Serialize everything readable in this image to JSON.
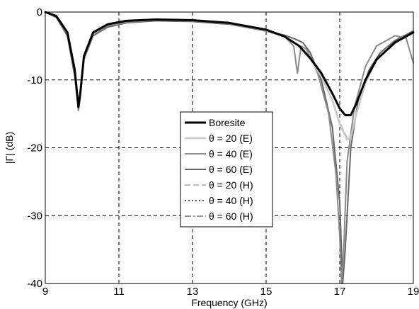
{
  "chart_data": {
    "type": "line",
    "xlabel": "Frequency (GHz)",
    "ylabel": "|Γ| (dB)",
    "xlim": [
      9,
      19
    ],
    "ylim": [
      -40,
      0
    ],
    "xticks": [
      9,
      11,
      13,
      15,
      17,
      19
    ],
    "yticks": [
      0,
      -10,
      -20,
      -30,
      -40
    ],
    "grid": true,
    "legend_position": "center",
    "series": [
      {
        "name": "Boresite",
        "color": "#000000",
        "dash": "solid",
        "width": 3,
        "x": [
          9.0,
          9.3,
          9.6,
          9.8,
          9.9,
          9.95,
          10.05,
          10.3,
          10.7,
          11.2,
          12.0,
          13.0,
          14.0,
          15.0,
          15.5,
          15.9,
          16.2,
          16.5,
          16.8,
          17.0,
          17.15,
          17.3,
          17.45,
          17.7,
          18.0,
          18.5,
          19.0
        ],
        "y": [
          0.0,
          -0.6,
          -3.0,
          -8.5,
          -14.0,
          -12.0,
          -6.5,
          -3.0,
          -1.8,
          -1.3,
          -1.1,
          -1.2,
          -1.6,
          -2.6,
          -3.6,
          -5.0,
          -6.8,
          -9.0,
          -12.0,
          -14.2,
          -15.2,
          -15.2,
          -13.5,
          -10.0,
          -7.0,
          -4.5,
          -3.0
        ]
      },
      {
        "name": "θ = 20 (E)",
        "color": "#c8c8c8",
        "dash": "solid",
        "width": 2.5,
        "x": [
          9.0,
          9.3,
          9.6,
          9.8,
          9.9,
          9.95,
          10.05,
          10.3,
          10.7,
          11.2,
          12.0,
          13.0,
          14.0,
          15.0,
          15.5,
          15.9,
          16.2,
          16.5,
          16.8,
          17.0,
          17.2,
          17.3,
          17.45,
          17.7,
          18.0,
          18.5,
          19.0
        ],
        "y": [
          0.0,
          -0.6,
          -3.0,
          -8.5,
          -14.0,
          -12.0,
          -6.5,
          -3.0,
          -1.8,
          -1.3,
          -1.1,
          -1.2,
          -1.6,
          -2.6,
          -3.6,
          -5.0,
          -7.0,
          -9.5,
          -13.0,
          -16.5,
          -18.8,
          -18.5,
          -15.0,
          -10.5,
          -7.0,
          -4.5,
          -3.0
        ]
      },
      {
        "name": "θ = 40 (E)",
        "color": "#8a8a8a",
        "dash": "solid",
        "width": 2,
        "x": [
          9.0,
          9.3,
          9.6,
          9.8,
          9.9,
          9.95,
          10.05,
          10.3,
          10.7,
          11.2,
          12.0,
          13.0,
          14.0,
          15.0,
          15.5,
          15.75,
          15.85,
          15.95,
          16.1,
          16.4,
          16.7,
          16.9,
          17.0,
          17.05,
          17.1,
          17.2,
          17.4,
          17.7,
          18.0,
          18.5,
          18.8,
          19.0
        ],
        "y": [
          0.0,
          -0.7,
          -3.2,
          -9.0,
          -14.5,
          -12.5,
          -7.0,
          -3.2,
          -2.0,
          -1.5,
          -1.2,
          -1.3,
          -1.7,
          -2.8,
          -3.6,
          -5.0,
          -9.0,
          -5.0,
          -5.5,
          -9.0,
          -15.0,
          -24.0,
          -33.0,
          -40.0,
          -36.0,
          -22.0,
          -14.0,
          -8.0,
          -5.0,
          -3.5,
          -3.8,
          -7.5
        ]
      },
      {
        "name": "θ = 60 (E)",
        "color": "#666666",
        "dash": "solid",
        "width": 2,
        "x": [
          9.0,
          9.3,
          9.6,
          9.8,
          9.9,
          9.95,
          10.05,
          10.3,
          10.7,
          11.2,
          12.0,
          13.0,
          14.0,
          15.0,
          15.5,
          15.8,
          16.0,
          16.2,
          16.5,
          16.8,
          17.0,
          17.08,
          17.15,
          17.3,
          17.5,
          17.8,
          18.1,
          18.5,
          19.0
        ],
        "y": [
          0.0,
          -0.8,
          -3.5,
          -9.5,
          -14.5,
          -12.5,
          -7.0,
          -3.5,
          -2.2,
          -1.6,
          -1.3,
          -1.4,
          -1.8,
          -2.8,
          -3.4,
          -4.0,
          -4.5,
          -6.0,
          -10.0,
          -17.0,
          -28.0,
          -40.0,
          -35.0,
          -20.0,
          -13.0,
          -8.5,
          -6.0,
          -4.2,
          -2.8
        ]
      },
      {
        "name": "θ = 20 (H)",
        "color": "#bdbdbd",
        "dash": "8,4",
        "width": 2,
        "x": [
          9.0,
          9.3,
          9.6,
          9.8,
          9.9,
          9.95,
          10.05,
          10.3,
          10.7,
          11.2,
          12.0,
          13.0,
          14.0,
          15.0,
          15.5,
          15.9,
          16.2,
          16.5,
          16.8,
          17.0,
          17.2,
          17.3,
          17.45,
          17.7,
          18.0,
          18.5,
          19.0
        ],
        "y": [
          0.0,
          -0.6,
          -3.0,
          -8.5,
          -13.8,
          -11.8,
          -6.4,
          -3.0,
          -1.8,
          -1.3,
          -1.1,
          -1.2,
          -1.6,
          -2.6,
          -3.6,
          -5.0,
          -7.0,
          -9.5,
          -13.0,
          -16.3,
          -18.5,
          -18.3,
          -15.0,
          -10.5,
          -7.0,
          -4.5,
          -3.0
        ]
      },
      {
        "name": "θ = 40 (H)",
        "color": "#555555",
        "dash": "2,3",
        "width": 2,
        "x": [
          9.0,
          9.3,
          9.6,
          9.8,
          9.9,
          9.95,
          10.05,
          10.3,
          10.7,
          11.2,
          12.0,
          13.0,
          14.0,
          15.0,
          15.5,
          15.9,
          16.2,
          16.5,
          16.8,
          17.0,
          17.15,
          17.3,
          17.45,
          17.7,
          18.0,
          18.5,
          19.0
        ],
        "y": [
          0.0,
          -0.6,
          -3.0,
          -8.5,
          -14.0,
          -12.0,
          -6.5,
          -3.0,
          -1.8,
          -1.3,
          -1.1,
          -1.2,
          -1.6,
          -2.6,
          -3.6,
          -5.0,
          -6.8,
          -9.0,
          -12.0,
          -14.2,
          -15.2,
          -15.2,
          -13.5,
          -10.0,
          -7.0,
          -4.5,
          -3.0
        ]
      },
      {
        "name": "θ = 60 (H)",
        "color": "#9a9a9a",
        "dash": "9,3,2,3",
        "width": 2,
        "x": [
          9.0,
          9.3,
          9.6,
          9.8,
          9.9,
          9.95,
          10.05,
          10.3,
          10.7,
          11.2,
          12.0,
          13.0,
          14.0,
          15.0,
          15.5,
          15.9,
          16.2,
          16.5,
          16.8,
          17.0,
          17.15,
          17.3,
          17.45,
          17.7,
          18.0,
          18.5,
          19.0
        ],
        "y": [
          0.0,
          -0.6,
          -3.0,
          -8.5,
          -14.0,
          -12.0,
          -6.5,
          -3.0,
          -1.8,
          -1.3,
          -1.1,
          -1.2,
          -1.6,
          -2.6,
          -3.6,
          -5.0,
          -6.8,
          -9.0,
          -12.0,
          -14.2,
          -15.2,
          -15.2,
          -13.5,
          -10.0,
          -7.0,
          -4.5,
          -3.0
        ]
      }
    ]
  }
}
